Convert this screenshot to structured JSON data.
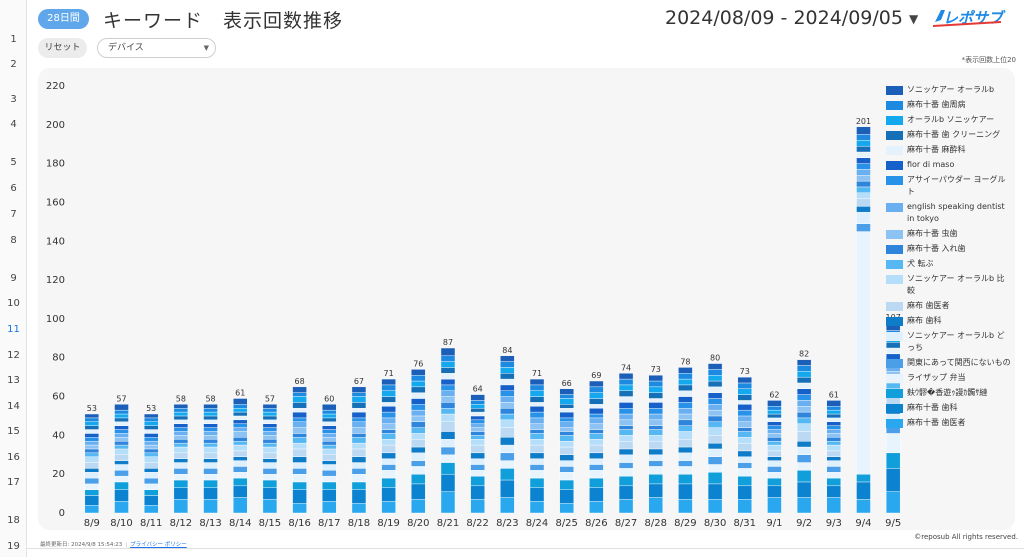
{
  "sheet_rows": [
    "1",
    "2",
    "3",
    "4",
    "5",
    "6",
    "7",
    "8",
    "9",
    "10",
    "11",
    "12",
    "13",
    "14",
    "15",
    "16",
    "17",
    "18",
    "19"
  ],
  "active_row": "11",
  "header": {
    "range_pill": "28日間",
    "title": "キーワード　表示回数推移",
    "date_range": "2024/08/09 - 2024/09/05",
    "date_caret": "▼",
    "logo_text": "レポサブ"
  },
  "controls": {
    "reset_label": "リセット",
    "device_label": "デバイス",
    "device_caret": "▼"
  },
  "top_note": "*表示回数上位20",
  "footer": {
    "updated": "最終更新日: 2024/9/8 15:54:23",
    "separator": "|",
    "privacy": "プライバシー ポリシー",
    "copyright": "©reposub All rights reserved."
  },
  "colors": [
    "#1c5fb8",
    "#1b8ae0",
    "#14a9ee",
    "#1670b7",
    "#e5f2fc",
    "#1560c9",
    "#2891e8",
    "#6ab0f0",
    "#8cc3f2",
    "#2f84dc",
    "#55b8f2",
    "#b5defa",
    "#bcd9f3",
    "#0f7cc9",
    "#def0fd",
    "#4a9fe8",
    "#e8f4fd",
    "#119fdc",
    "#0b83d0",
    "#29a8f0"
  ],
  "chart_data": {
    "type": "bar",
    "stacked": true,
    "categories": [
      "8/9",
      "8/10",
      "8/11",
      "8/12",
      "8/13",
      "8/14",
      "8/15",
      "8/16",
      "8/17",
      "8/18",
      "8/19",
      "8/20",
      "8/21",
      "8/22",
      "8/23",
      "8/24",
      "8/25",
      "8/26",
      "8/27",
      "8/28",
      "8/29",
      "8/30",
      "8/31",
      "9/1",
      "9/2",
      "9/3",
      "9/4",
      "9/5"
    ],
    "totals": [
      53,
      57,
      53,
      58,
      58,
      61,
      57,
      68,
      60,
      67,
      71,
      76,
      87,
      64,
      84,
      71,
      66,
      69,
      74,
      73,
      78,
      80,
      73,
      62,
      82,
      61,
      201,
      107
    ],
    "ylim": [
      0,
      220
    ],
    "yticks": [
      0,
      20,
      40,
      60,
      80,
      100,
      120,
      140,
      160,
      180,
      200,
      220
    ],
    "legend_position": "right",
    "series": [
      {
        "name": "ソニッケアー オーラルb",
        "values": [
          2,
          3,
          2,
          2,
          2,
          3,
          2,
          3,
          3,
          3,
          3,
          3,
          4,
          3,
          3,
          3,
          3,
          3,
          3,
          3,
          3,
          3,
          3,
          3,
          3,
          3,
          4,
          4
        ]
      },
      {
        "name": "麻布十番 歯周病",
        "values": [
          2,
          2,
          2,
          2,
          2,
          2,
          2,
          2,
          2,
          2,
          3,
          3,
          3,
          2,
          3,
          3,
          2,
          3,
          3,
          3,
          3,
          3,
          3,
          2,
          3,
          2,
          3,
          3
        ]
      },
      {
        "name": "オーラルb ソニッケアー",
        "values": [
          2,
          2,
          2,
          2,
          2,
          2,
          2,
          3,
          2,
          3,
          3,
          3,
          3,
          2,
          3,
          3,
          3,
          3,
          3,
          3,
          3,
          3,
          3,
          2,
          3,
          2,
          3,
          3
        ]
      },
      {
        "name": "麻布十番 歯 クリーニング",
        "values": [
          2,
          2,
          2,
          2,
          2,
          2,
          2,
          3,
          2,
          3,
          3,
          3,
          3,
          2,
          3,
          3,
          2,
          3,
          3,
          3,
          3,
          3,
          3,
          2,
          3,
          2,
          3,
          3
        ]
      },
      {
        "name": "麻布十番 麻酔科",
        "values": [
          2,
          2,
          2,
          2,
          2,
          2,
          2,
          2,
          2,
          2,
          2,
          3,
          3,
          2,
          3,
          2,
          2,
          2,
          3,
          2,
          3,
          3,
          2,
          2,
          3,
          2,
          3,
          3
        ]
      },
      {
        "name": "fior di maso",
        "values": [
          2,
          2,
          2,
          2,
          2,
          2,
          2,
          3,
          2,
          3,
          3,
          3,
          3,
          2,
          3,
          3,
          3,
          3,
          3,
          3,
          3,
          3,
          3,
          2,
          3,
          2,
          3,
          3
        ]
      },
      {
        "name": "アサイーパウダー ヨーグルト",
        "values": [
          2,
          2,
          2,
          2,
          2,
          2,
          2,
          2,
          2,
          2,
          3,
          3,
          3,
          2,
          3,
          3,
          2,
          2,
          3,
          3,
          3,
          3,
          3,
          2,
          3,
          2,
          3,
          3
        ]
      },
      {
        "name": "english speaking dentist in tokyo",
        "values": [
          2,
          2,
          2,
          2,
          2,
          2,
          2,
          3,
          2,
          3,
          3,
          3,
          3,
          2,
          3,
          3,
          3,
          3,
          3,
          3,
          3,
          3,
          3,
          2,
          3,
          2,
          3,
          3
        ]
      },
      {
        "name": "麻布十番 虫歯",
        "values": [
          2,
          2,
          2,
          2,
          2,
          3,
          2,
          3,
          2,
          3,
          3,
          3,
          3,
          2,
          3,
          3,
          2,
          3,
          3,
          3,
          3,
          3,
          3,
          2,
          3,
          2,
          3,
          3
        ]
      },
      {
        "name": "麻布十番 入れ歯",
        "values": [
          2,
          2,
          2,
          2,
          2,
          2,
          2,
          2,
          2,
          2,
          2,
          3,
          3,
          2,
          3,
          2,
          2,
          2,
          2,
          2,
          3,
          3,
          2,
          2,
          3,
          2,
          3,
          3
        ]
      },
      {
        "name": "犬 転ぶ",
        "values": [
          2,
          2,
          2,
          2,
          2,
          2,
          2,
          3,
          2,
          3,
          3,
          3,
          3,
          2,
          3,
          3,
          3,
          3,
          3,
          3,
          3,
          3,
          3,
          2,
          3,
          2,
          3,
          3
        ]
      },
      {
        "name": "ソニッケアー オーラルb 比較",
        "values": [
          3,
          3,
          3,
          3,
          3,
          3,
          3,
          3,
          3,
          3,
          3,
          3,
          4,
          3,
          4,
          3,
          3,
          3,
          3,
          3,
          4,
          4,
          3,
          3,
          4,
          3,
          3,
          4
        ]
      },
      {
        "name": "麻布 歯医者",
        "values": [
          3,
          3,
          3,
          3,
          3,
          3,
          3,
          4,
          3,
          4,
          4,
          4,
          5,
          4,
          5,
          4,
          4,
          4,
          4,
          4,
          4,
          4,
          4,
          3,
          5,
          3,
          4,
          5
        ]
      },
      {
        "name": "麻布 歯科",
        "values": [
          2,
          2,
          2,
          2,
          2,
          2,
          2,
          3,
          2,
          3,
          3,
          3,
          4,
          3,
          4,
          3,
          3,
          3,
          3,
          3,
          3,
          3,
          3,
          2,
          3,
          2,
          3,
          4
        ]
      },
      {
        "name": "ソニッケアー オーラルb どっち",
        "values": [
          3,
          3,
          3,
          3,
          3,
          3,
          3,
          3,
          3,
          3,
          3,
          4,
          4,
          3,
          4,
          3,
          3,
          3,
          4,
          3,
          4,
          4,
          3,
          3,
          4,
          3,
          6,
          5
        ]
      },
      {
        "name": "関東にあって関西にないもの",
        "values": [
          3,
          3,
          3,
          3,
          3,
          3,
          3,
          3,
          3,
          3,
          3,
          3,
          4,
          3,
          4,
          3,
          3,
          3,
          3,
          3,
          3,
          4,
          3,
          3,
          4,
          3,
          4,
          5
        ]
      },
      {
        "name": "ライザップ 弁当",
        "values": [
          3,
          3,
          3,
          3,
          3,
          3,
          3,
          4,
          3,
          4,
          4,
          4,
          4,
          3,
          4,
          4,
          4,
          4,
          4,
          4,
          4,
          4,
          4,
          3,
          4,
          3,
          125,
          10
        ]
      },
      {
        "name": "麸ｳ髎�香遊ｩ謾ｶ髑ｻ縺",
        "values": [
          3,
          4,
          3,
          4,
          4,
          4,
          4,
          4,
          4,
          4,
          5,
          5,
          6,
          5,
          6,
          5,
          5,
          5,
          5,
          5,
          5,
          6,
          5,
          4,
          6,
          4,
          4,
          8
        ]
      },
      {
        "name": "麻布十番 歯科",
        "values": [
          5,
          6,
          5,
          6,
          6,
          6,
          6,
          7,
          6,
          7,
          7,
          8,
          9,
          7,
          9,
          7,
          7,
          7,
          7,
          7,
          8,
          8,
          7,
          6,
          8,
          6,
          9,
          12
        ]
      },
      {
        "name": "麻布十番 歯医者",
        "values": [
          4,
          6,
          4,
          7,
          7,
          8,
          7,
          5,
          6,
          5,
          6,
          7,
          11,
          7,
          8,
          6,
          5,
          6,
          7,
          8,
          7,
          7,
          7,
          8,
          8,
          8,
          7,
          11
        ]
      }
    ]
  }
}
